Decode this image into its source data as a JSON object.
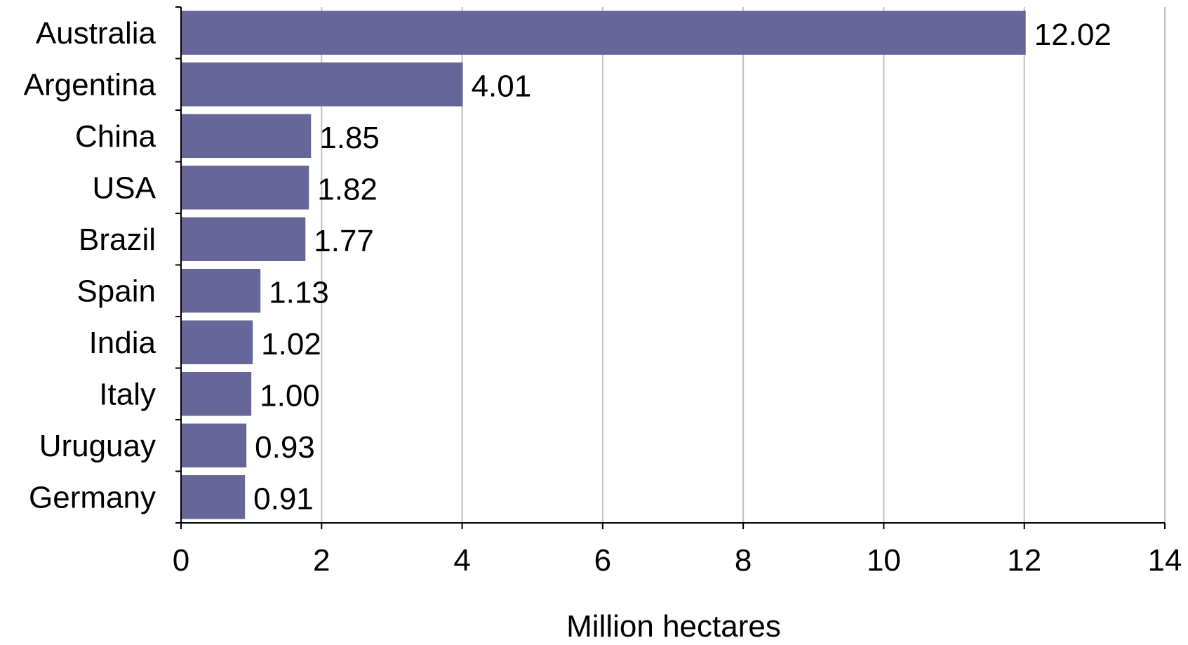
{
  "chart_data": {
    "type": "bar",
    "orientation": "horizontal",
    "categories": [
      "Australia",
      "Argentina",
      "China",
      "USA",
      "Brazil",
      "Spain",
      "India",
      "Italy",
      "Uruguay",
      "Germany"
    ],
    "values": [
      12.02,
      4.01,
      1.85,
      1.82,
      1.77,
      1.13,
      1.02,
      1.0,
      0.93,
      0.91
    ],
    "value_labels": [
      "12.02",
      "4.01",
      "1.85",
      "1.82",
      "1.77",
      "1.13",
      "1.02",
      "1.00",
      "0.93",
      "0.91"
    ],
    "xlabel": "Million hectares",
    "ylabel": "",
    "title": "",
    "xlim": [
      0,
      14
    ],
    "xticks": [
      0,
      2,
      4,
      6,
      8,
      10,
      12,
      14
    ],
    "grid": "vertical",
    "legend": "none",
    "bar_color": "#666699"
  }
}
